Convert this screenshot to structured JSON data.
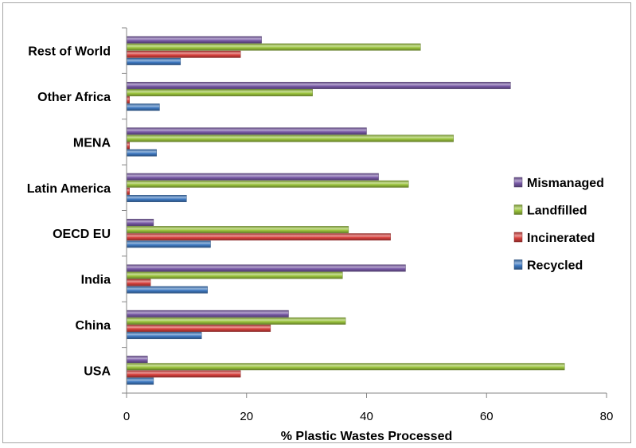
{
  "chart_data": {
    "type": "bar",
    "orientation": "horizontal",
    "title": "",
    "xlabel": "% Plastic Wastes Processed",
    "ylabel": "",
    "xlim": [
      0,
      80
    ],
    "xticks": [
      0,
      20,
      40,
      60,
      80
    ],
    "grid": false,
    "legend_position": "right",
    "categories": [
      "Rest of World",
      "Other Africa",
      "MENA",
      "Latin America",
      "OECD EU",
      "India",
      "China",
      "USA"
    ],
    "series": [
      {
        "name": "Mismanaged",
        "color": "#7a5ba8",
        "values": [
          22.5,
          64,
          40,
          42,
          4.5,
          46.5,
          27,
          3.5
        ]
      },
      {
        "name": "Landfilled",
        "color": "#9bc43d",
        "values": [
          49,
          31,
          54.5,
          47,
          37,
          36,
          36.5,
          73
        ]
      },
      {
        "name": "Incinerated",
        "color": "#d8413e",
        "values": [
          19,
          0.5,
          0.5,
          0.5,
          44,
          4,
          24,
          19
        ]
      },
      {
        "name": "Recycled",
        "color": "#3f7ac2",
        "values": [
          9,
          5.5,
          5,
          10,
          14,
          13.5,
          12.5,
          4.5
        ]
      }
    ],
    "legend_order": [
      "Mismanaged",
      "Landfilled",
      "Incinerated",
      "Recycled"
    ]
  }
}
